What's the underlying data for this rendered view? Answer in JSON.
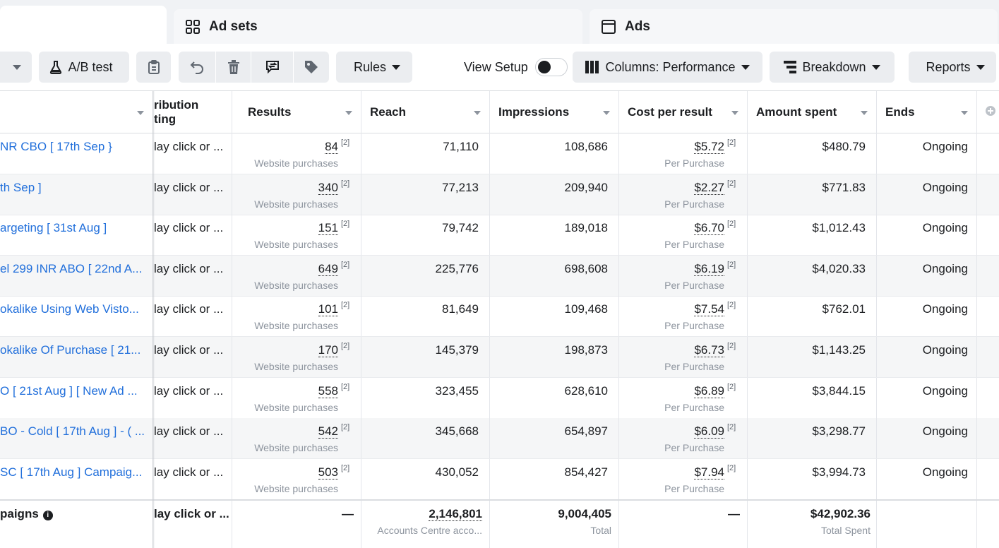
{
  "tabs": {
    "adsets_label": "Ad sets",
    "ads_label": "Ads"
  },
  "toolbar": {
    "ab_test_label": "A/B test",
    "rules_label": "Rules",
    "view_setup_label": "View Setup",
    "columns_label": "Columns: Performance",
    "breakdown_label": "Breakdown",
    "reports_label": "Reports"
  },
  "table": {
    "headers": {
      "attribution_line1": "ribution",
      "attribution_line2": "ting",
      "results": "Results",
      "reach": "Reach",
      "impressions": "Impressions",
      "cost_per_result": "Cost per result",
      "amount_spent": "Amount spent",
      "ends": "Ends"
    },
    "rows": [
      {
        "name": "NR CBO [ 17th Sep }",
        "attribution": "lay click or ...",
        "results": "84",
        "results_sup": "[2]",
        "results_sub": "Website purchases",
        "reach": "71,110",
        "impressions": "108,686",
        "cpr": "$5.72",
        "cpr_sup": "[2]",
        "cpr_sub": "Per Purchase",
        "spent": "$480.79",
        "ends": "Ongoing"
      },
      {
        "name": "th Sep ]",
        "attribution": "lay click or ...",
        "results": "340",
        "results_sup": "[2]",
        "results_sub": "Website purchases",
        "reach": "77,213",
        "impressions": "209,940",
        "cpr": "$2.27",
        "cpr_sup": "[2]",
        "cpr_sub": "Per Purchase",
        "spent": "$771.83",
        "ends": "Ongoing"
      },
      {
        "name": "argeting [ 31st Aug ]",
        "attribution": "lay click or ...",
        "results": "151",
        "results_sup": "[2]",
        "results_sub": "Website purchases",
        "reach": "79,742",
        "impressions": "189,018",
        "cpr": "$6.70",
        "cpr_sup": "[2]",
        "cpr_sub": "Per Purchase",
        "spent": "$1,012.43",
        "ends": "Ongoing"
      },
      {
        "name": "el 299 INR ABO [ 22nd A...",
        "attribution": "lay click or ...",
        "results": "649",
        "results_sup": "[2]",
        "results_sub": "Website purchases",
        "reach": "225,776",
        "impressions": "698,608",
        "cpr": "$6.19",
        "cpr_sup": "[2]",
        "cpr_sub": "Per Purchase",
        "spent": "$4,020.33",
        "ends": "Ongoing"
      },
      {
        "name": "okalike Using Web Visto...",
        "attribution": "lay click or ...",
        "results": "101",
        "results_sup": "[2]",
        "results_sub": "Website purchases",
        "reach": "81,649",
        "impressions": "109,468",
        "cpr": "$7.54",
        "cpr_sup": "[2]",
        "cpr_sub": "Per Purchase",
        "spent": "$762.01",
        "ends": "Ongoing"
      },
      {
        "name": "okalike Of Purchase [ 21...",
        "attribution": "lay click or ...",
        "results": "170",
        "results_sup": "[2]",
        "results_sub": "Website purchases",
        "reach": "145,379",
        "impressions": "198,873",
        "cpr": "$6.73",
        "cpr_sup": "[2]",
        "cpr_sub": "Per Purchase",
        "spent": "$1,143.25",
        "ends": "Ongoing"
      },
      {
        "name": "O [ 21st Aug ] [ New Ad ...",
        "attribution": "lay click or ...",
        "results": "558",
        "results_sup": "[2]",
        "results_sub": "Website purchases",
        "reach": "323,455",
        "impressions": "628,610",
        "cpr": "$6.89",
        "cpr_sup": "[2]",
        "cpr_sub": "Per Purchase",
        "spent": "$3,844.15",
        "ends": "Ongoing"
      },
      {
        "name": "BO - Cold [ 17th Aug ] - ( ...",
        "attribution": "lay click or ...",
        "results": "542",
        "results_sup": "[2]",
        "results_sub": "Website purchases",
        "reach": "345,668",
        "impressions": "654,897",
        "cpr": "$6.09",
        "cpr_sup": "[2]",
        "cpr_sub": "Per Purchase",
        "spent": "$3,298.77",
        "ends": "Ongoing"
      },
      {
        "name": "SC [ 17th Aug ] Campaig...",
        "attribution": "lay click or ...",
        "results": "503",
        "results_sup": "[2]",
        "results_sub": "Website purchases",
        "reach": "430,052",
        "impressions": "854,427",
        "cpr": "$7.94",
        "cpr_sup": "[2]",
        "cpr_sub": "Per Purchase",
        "spent": "$3,994.73",
        "ends": "Ongoing"
      }
    ],
    "footer": {
      "name": "paigns",
      "attribution": "lay click or ...",
      "results": "—",
      "reach": "2,146,801",
      "reach_sub": "Accounts Centre acco...",
      "impressions": "9,004,405",
      "impressions_sub": "Total",
      "cpr": "—",
      "spent": "$42,902.36",
      "spent_sub": "Total Spent"
    }
  },
  "colors": {
    "link": "#216fdb",
    "muted": "#8d949e",
    "button_bg": "#ebedf0",
    "alt_row": "#f5f6f7"
  }
}
